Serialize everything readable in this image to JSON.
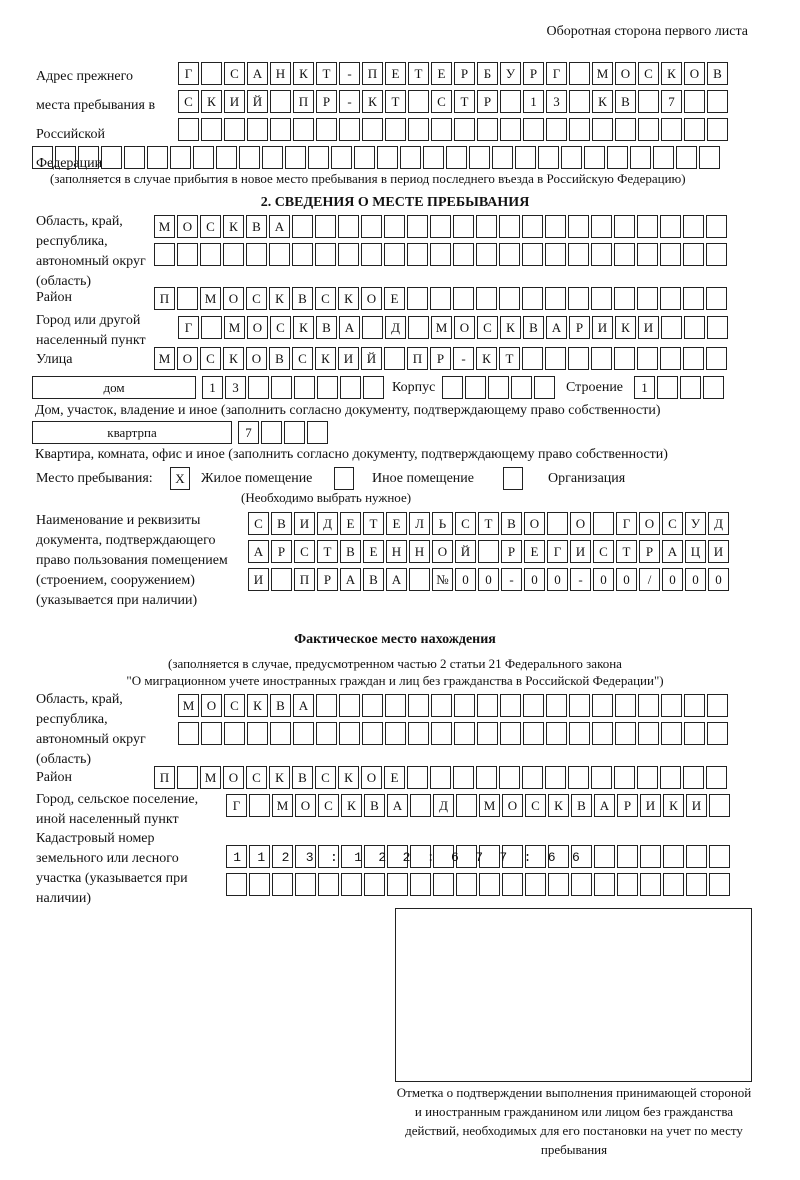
{
  "header": "Оборотная сторона первого листа",
  "prev_address": {
    "label": "Адрес прежнего места пребывания в Российской Федерации",
    "rows": [
      "Г САНКТ-ПЕТЕРБУРГ МОСКОВ",
      "СКИЙ ПР-КТ СТР 13 КВ 7",
      "",
      ""
    ],
    "note": "(заполняется в случае прибытия в новое место пребывания в период последнего въезда в Российскую Федерацию)"
  },
  "section2": {
    "title": "2. СВЕДЕНИЯ О МЕСТЕ ПРЕБЫВАНИЯ",
    "region_label": "Область, край, республика, автономный округ (область)",
    "region_rows": [
      "МОСКВА",
      ""
    ],
    "district_label": "Район",
    "district": "П МОСКВСКОЕ",
    "city_label": "Город или другой населенный пункт",
    "city": "Г МОСКВА Д МОСКВАРИКИ",
    "street_label": "Улица",
    "street": "МОСКОВСКИЙ ПР-КТ",
    "house_type": "дом",
    "house_number": "13",
    "korpus_label": "Корпус",
    "korpus": "",
    "building_label": "Строение",
    "building": "1",
    "house_note": "Дом, участок, владение и иное (заполнить согласно документу, подтверждающему право собственности)",
    "apt_type": "квартрпа",
    "apt_number": "7",
    "apt_note": "Квартира, комната, офис и иное (заполнить согласно документу, подтверждающему право собственности)",
    "stay_label": "Место пребывания:",
    "stay_options": [
      {
        "label": "Жилое помещение",
        "mark": "Х"
      },
      {
        "label": "Иное помещение",
        "mark": ""
      },
      {
        "label": "Организация",
        "mark": ""
      }
    ],
    "stay_note": "(Необходимо выбрать нужное)",
    "doc_label": "Наименование и реквизиты документа, подтверждающего право пользования помещением (строением, сооружением) (указывается при наличии)",
    "doc_rows": [
      "СВИДЕТЕЛЬСТВО О ГОСУД",
      "АРСТВЕННОЙ РЕГИСТРАЦИ",
      "И ПРАВА №00-00-00/000"
    ]
  },
  "actual": {
    "title": "Фактическое место нахождения",
    "note1": "(заполняется в случае, предусмотренном частью 2 статьи 21 Федерального закона",
    "note2": "\"О миграционном учете иностранных граждан и лиц без гражданства в Российской Федерации\")",
    "region_label": "Область, край, республика, автономный округ (область)",
    "region_rows": [
      "МОСКВА",
      ""
    ],
    "district_label": "Район",
    "district": "П МОСКВСКОЕ",
    "city_label": "Город, сельское поселение, иной населенный пункт",
    "city": "Г МОСКВА Д МОСКВАРИКИ",
    "cadastre_label": "Кадастровый номер земельного или лесного участка (указывается при наличии)",
    "cadastre_rows": [
      "1123:122:677:66",
      ""
    ]
  },
  "stamp_caption": "Отметка о подтверждении выполнения принимающей стороной и иностранным гражданином или лицом без гражданства действий, необходимых для его постановки на учет по месту пребывания"
}
